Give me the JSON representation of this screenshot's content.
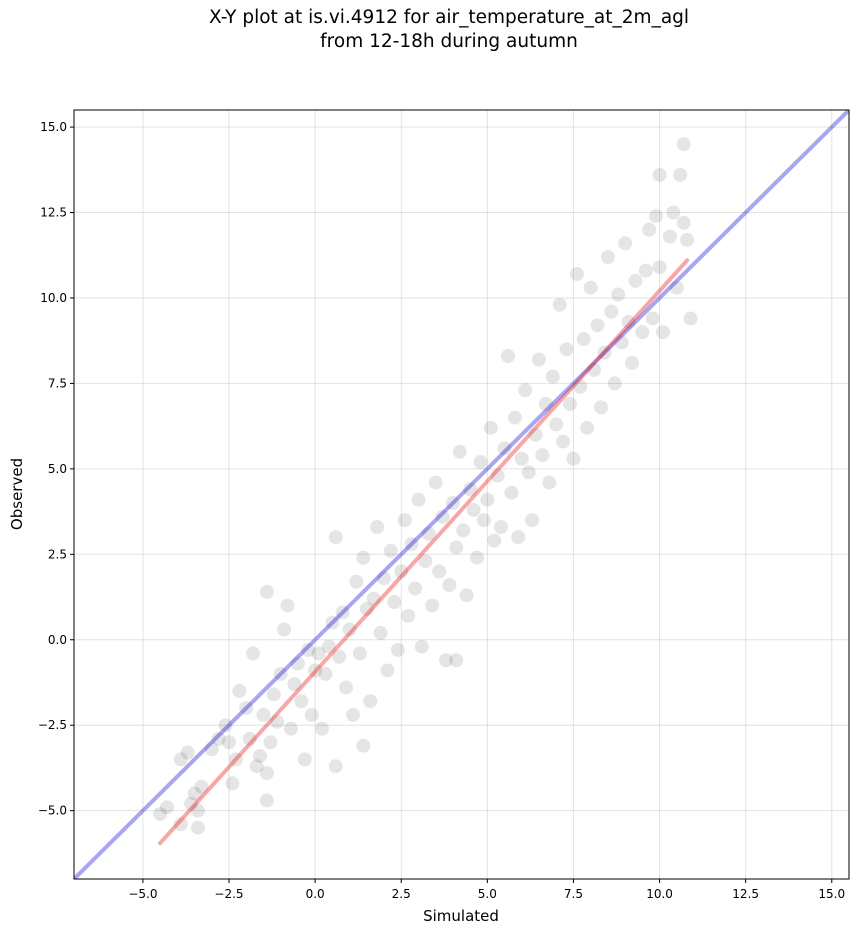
{
  "chart_data": {
    "type": "scatter",
    "title": "X-Y plot at is.vi.4912 for air_temperature_at_2m_agl",
    "subtitle": "from 12-18h during autumn",
    "xlabel": "Simulated",
    "ylabel": "Observed",
    "xlim": [
      -7.0,
      15.5
    ],
    "ylim": [
      -7.0,
      15.5
    ],
    "x_ticks": [
      -5.0,
      -2.5,
      0.0,
      2.5,
      5.0,
      7.5,
      10.0,
      12.5,
      15.0
    ],
    "y_ticks": [
      -5.0,
      -2.5,
      0.0,
      2.5,
      5.0,
      7.5,
      10.0,
      12.5,
      15.0
    ],
    "x_tick_labels": [
      "−5.0",
      "−2.5",
      "0.0",
      "2.5",
      "5.0",
      "7.5",
      "10.0",
      "12.5",
      "15.0"
    ],
    "y_tick_labels": [
      "−5.0",
      "−2.5",
      "0.0",
      "2.5",
      "5.0",
      "7.5",
      "10.0",
      "12.5",
      "15.0"
    ],
    "grid": true,
    "points": [
      [
        -4.5,
        -5.1
      ],
      [
        -4.3,
        -4.9
      ],
      [
        -3.9,
        -5.4
      ],
      [
        -3.9,
        -3.5
      ],
      [
        -3.7,
        -3.3
      ],
      [
        -3.6,
        -4.8
      ],
      [
        -3.5,
        -4.5
      ],
      [
        -3.4,
        -5.0
      ],
      [
        -3.4,
        -5.5
      ],
      [
        -3.3,
        -4.3
      ],
      [
        -3.0,
        -3.2
      ],
      [
        -2.8,
        -2.9
      ],
      [
        -2.6,
        -2.5
      ],
      [
        -2.5,
        -3.0
      ],
      [
        -2.4,
        -4.2
      ],
      [
        -2.3,
        -3.5
      ],
      [
        -2.2,
        -1.5
      ],
      [
        -2.0,
        -2.0
      ],
      [
        -1.9,
        -2.9
      ],
      [
        -1.8,
        -0.4
      ],
      [
        -1.7,
        -3.7
      ],
      [
        -1.6,
        -3.4
      ],
      [
        -1.5,
        -2.2
      ],
      [
        -1.4,
        -3.9
      ],
      [
        -1.4,
        -4.7
      ],
      [
        -1.4,
        1.4
      ],
      [
        -1.3,
        -3.0
      ],
      [
        -1.2,
        -1.6
      ],
      [
        -1.1,
        -2.4
      ],
      [
        -1.0,
        -1.0
      ],
      [
        -0.9,
        0.3
      ],
      [
        -0.8,
        1.0
      ],
      [
        -0.7,
        -2.6
      ],
      [
        -0.6,
        -1.3
      ],
      [
        -0.5,
        -0.7
      ],
      [
        -0.4,
        -1.8
      ],
      [
        -0.3,
        -3.5
      ],
      [
        -0.2,
        -0.3
      ],
      [
        -0.1,
        -2.2
      ],
      [
        0.0,
        -0.9
      ],
      [
        0.1,
        -0.4
      ],
      [
        0.2,
        -2.6
      ],
      [
        0.3,
        -1.0
      ],
      [
        0.4,
        -0.2
      ],
      [
        0.5,
        0.5
      ],
      [
        0.6,
        -3.7
      ],
      [
        0.6,
        3.0
      ],
      [
        0.7,
        -0.5
      ],
      [
        0.8,
        0.8
      ],
      [
        0.9,
        -1.4
      ],
      [
        1.0,
        0.3
      ],
      [
        1.1,
        -2.2
      ],
      [
        1.2,
        1.7
      ],
      [
        1.3,
        -0.4
      ],
      [
        1.4,
        -3.1
      ],
      [
        1.4,
        2.4
      ],
      [
        1.5,
        0.9
      ],
      [
        1.6,
        -1.8
      ],
      [
        1.7,
        1.2
      ],
      [
        1.8,
        3.3
      ],
      [
        1.9,
        0.2
      ],
      [
        2.0,
        1.8
      ],
      [
        2.1,
        -0.9
      ],
      [
        2.2,
        2.6
      ],
      [
        2.3,
        1.1
      ],
      [
        2.4,
        -0.3
      ],
      [
        2.5,
        2.0
      ],
      [
        2.6,
        3.5
      ],
      [
        2.7,
        0.7
      ],
      [
        2.8,
        2.8
      ],
      [
        2.9,
        1.5
      ],
      [
        3.0,
        4.1
      ],
      [
        3.1,
        -0.2
      ],
      [
        3.2,
        2.3
      ],
      [
        3.3,
        3.1
      ],
      [
        3.4,
        1.0
      ],
      [
        3.5,
        4.6
      ],
      [
        3.6,
        2.0
      ],
      [
        3.7,
        3.6
      ],
      [
        3.8,
        -0.6
      ],
      [
        3.9,
        1.6
      ],
      [
        4.0,
        4.0
      ],
      [
        4.1,
        -0.6
      ],
      [
        4.1,
        2.7
      ],
      [
        4.2,
        5.5
      ],
      [
        4.3,
        3.2
      ],
      [
        4.4,
        1.3
      ],
      [
        4.5,
        4.4
      ],
      [
        4.6,
        3.8
      ],
      [
        4.7,
        2.4
      ],
      [
        4.8,
        5.2
      ],
      [
        4.9,
        3.5
      ],
      [
        5.0,
        4.1
      ],
      [
        5.1,
        6.2
      ],
      [
        5.2,
        2.9
      ],
      [
        5.3,
        4.8
      ],
      [
        5.4,
        3.3
      ],
      [
        5.5,
        5.6
      ],
      [
        5.6,
        8.3
      ],
      [
        5.7,
        4.3
      ],
      [
        5.8,
        6.5
      ],
      [
        5.9,
        3.0
      ],
      [
        6.0,
        5.3
      ],
      [
        6.1,
        7.3
      ],
      [
        6.2,
        4.9
      ],
      [
        6.3,
        3.5
      ],
      [
        6.4,
        6.0
      ],
      [
        6.5,
        8.2
      ],
      [
        6.6,
        5.4
      ],
      [
        6.7,
        6.9
      ],
      [
        6.8,
        4.6
      ],
      [
        6.9,
        7.7
      ],
      [
        7.0,
        6.3
      ],
      [
        7.1,
        9.8
      ],
      [
        7.2,
        5.8
      ],
      [
        7.3,
        8.5
      ],
      [
        7.4,
        6.9
      ],
      [
        7.5,
        5.3
      ],
      [
        7.6,
        10.7
      ],
      [
        7.7,
        7.4
      ],
      [
        7.8,
        8.8
      ],
      [
        7.9,
        6.2
      ],
      [
        8.0,
        10.3
      ],
      [
        8.1,
        7.9
      ],
      [
        8.2,
        9.2
      ],
      [
        8.3,
        6.8
      ],
      [
        8.4,
        8.4
      ],
      [
        8.5,
        11.2
      ],
      [
        8.6,
        9.6
      ],
      [
        8.7,
        7.5
      ],
      [
        8.8,
        10.1
      ],
      [
        8.9,
        8.7
      ],
      [
        9.0,
        11.6
      ],
      [
        9.1,
        9.3
      ],
      [
        9.2,
        8.1
      ],
      [
        9.3,
        10.5
      ],
      [
        9.5,
        9.0
      ],
      [
        9.6,
        10.8
      ],
      [
        9.7,
        12.0
      ],
      [
        9.8,
        9.4
      ],
      [
        9.9,
        12.4
      ],
      [
        10.0,
        10.9
      ],
      [
        10.0,
        13.6
      ],
      [
        10.1,
        9.0
      ],
      [
        10.3,
        11.8
      ],
      [
        10.4,
        12.5
      ],
      [
        10.5,
        10.3
      ],
      [
        10.6,
        13.6
      ],
      [
        10.7,
        12.2
      ],
      [
        10.7,
        14.5
      ],
      [
        10.8,
        11.7
      ],
      [
        10.9,
        9.4
      ]
    ],
    "reference_line": {
      "slope": 1.0,
      "intercept": 0.0,
      "color": "#0000dd"
    },
    "fit_line": {
      "x_range": [
        -4.5,
        10.8
      ],
      "y_range": [
        -5.95,
        11.1
      ],
      "color": "#ee2222"
    },
    "point_color": "#000000"
  }
}
